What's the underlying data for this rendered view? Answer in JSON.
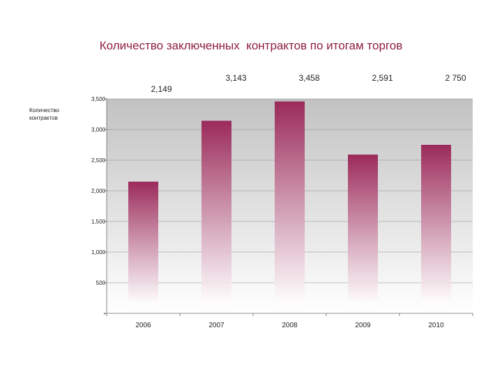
{
  "chart_data": {
    "type": "bar",
    "title": "Количество заключенных  контрактов по итогам торгов",
    "ylabel": "Количество контрактов",
    "ylabel_lines": [
      "Количество",
      "контрактов"
    ],
    "categories": [
      "2006",
      "2007",
      "2008",
      "2009",
      "2010"
    ],
    "values": [
      2149,
      3143,
      3458,
      2591,
      2750
    ],
    "data_labels": [
      "2,149",
      "3,143",
      "3,458",
      "2,591",
      "2 750"
    ],
    "yticks": [
      0,
      500,
      1000,
      1500,
      2000,
      2500,
      3000,
      3500
    ],
    "ytick_labels": [
      "-",
      "500",
      "1,000",
      "1,500",
      "2,000",
      "2,500",
      "3,000",
      "3,500"
    ],
    "ylim": [
      0,
      3500
    ],
    "grid": true,
    "colors": {
      "bar_top": "#9b2a5a",
      "bar_bottom": "#ffffff",
      "plot_top": "#c2c2c2",
      "plot_bottom": "#ffffff",
      "title": "#8c1e3c",
      "grid": "#8a8a8a"
    }
  }
}
